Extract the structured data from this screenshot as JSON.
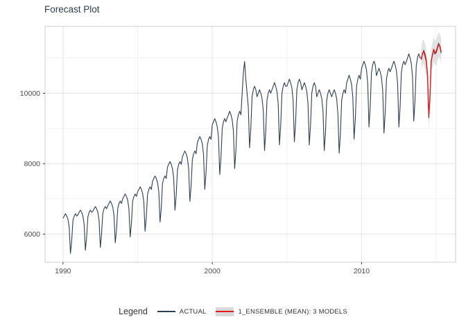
{
  "title": "Forecast Plot",
  "legend": {
    "label": "Legend",
    "entries": [
      {
        "name": "ACTUAL"
      },
      {
        "name": "1_ENSEMBLE (MEAN): 3 MODELS"
      }
    ]
  },
  "colors": {
    "actual": "#2c3e50",
    "forecast": "#e31a1c",
    "ribbon": "#d8d8d8",
    "grid_major": "#e3e3e3",
    "grid_minor": "#f1f1f1",
    "panel_border": "#c9ced3",
    "title_text": "#2c3e50",
    "axis_text": "#4a4a4a",
    "tick_mark": "#333333"
  },
  "axes": {
    "x_ticks": [
      "1990",
      "2000",
      "2010"
    ],
    "x_tick_values": [
      1990,
      2000,
      2010
    ],
    "x_minor": [
      1995,
      2005,
      2015
    ],
    "y_ticks": [
      "6000",
      "8000",
      "10000"
    ],
    "y_tick_values": [
      6000,
      8000,
      10000
    ],
    "y_minor": [
      7000,
      9000,
      11000
    ],
    "x_range": [
      1988.8,
      2016.3
    ],
    "y_range": [
      5200,
      11900
    ]
  },
  "chart_data": {
    "type": "line",
    "title": "Forecast Plot",
    "x_unit": "year (monthly samples, decimal years)",
    "xlabel": "",
    "ylabel": "",
    "legend_position": "bottom",
    "grid": true,
    "series": [
      {
        "name": "ACTUAL",
        "color": "#2c3e50",
        "start": 1990.0,
        "step": 0.0833333,
        "values": [
          6450,
          6510,
          6580,
          6510,
          6420,
          6190,
          5450,
          5810,
          6390,
          6510,
          6580,
          6510,
          6550,
          6620,
          6680,
          6620,
          6520,
          6290,
          5540,
          5900,
          6480,
          6620,
          6680,
          6620,
          6650,
          6720,
          6780,
          6720,
          6620,
          6380,
          5620,
          5990,
          6580,
          6720,
          6780,
          6720,
          6800,
          6870,
          6940,
          6870,
          6770,
          6530,
          5750,
          6120,
          6730,
          6870,
          6940,
          6870,
          7000,
          7070,
          7140,
          7070,
          6970,
          6720,
          5920,
          6300,
          6930,
          7070,
          7140,
          7070,
          7200,
          7270,
          7340,
          7270,
          7160,
          6910,
          6080,
          6480,
          7130,
          7270,
          7340,
          7270,
          7500,
          7580,
          7650,
          7580,
          7460,
          7200,
          6340,
          6750,
          7430,
          7580,
          7650,
          7580,
          7900,
          7980,
          8060,
          7980,
          7860,
          7580,
          6680,
          7110,
          7820,
          7980,
          8060,
          7980,
          8200,
          8280,
          8360,
          8280,
          8160,
          7870,
          6930,
          7380,
          8120,
          8280,
          8360,
          8280,
          8600,
          8690,
          8770,
          8690,
          8560,
          8260,
          7270,
          7740,
          8510,
          8690,
          8770,
          8690,
          9100,
          9190,
          9280,
          9190,
          9050,
          8740,
          7690,
          8190,
          9010,
          9190,
          9280,
          9190,
          9300,
          9390,
          9490,
          9390,
          9250,
          8930,
          7860,
          8370,
          9210,
          9390,
          9490,
          9390,
          10000,
          10600,
          10900,
          10400,
          10000,
          9600,
          8450,
          9000,
          9900,
          10100,
          10200,
          10100,
          9900,
          10000,
          10100,
          10000,
          9850,
          9500,
          8370,
          8910,
          9800,
          10000,
          10100,
          10000,
          10100,
          10200,
          10300,
          10200,
          10050,
          9700,
          8530,
          9090,
          10000,
          10200,
          10300,
          10200,
          10200,
          10300,
          10400,
          10300,
          10150,
          9790,
          8620,
          9180,
          10100,
          10300,
          10400,
          10300,
          10100,
          10200,
          10300,
          10200,
          10050,
          9700,
          8530,
          9090,
          10000,
          10200,
          10300,
          10200,
          9900,
          10000,
          10100,
          10000,
          9850,
          9500,
          8370,
          8910,
          9800,
          10000,
          10100,
          10000,
          9900,
          10000,
          10100,
          10000,
          9850,
          9400,
          8300,
          8850,
          9800,
          10000,
          10100,
          10000,
          10300,
          10400,
          10510,
          10400,
          10250,
          9890,
          8700,
          9270,
          10200,
          10400,
          10510,
          10400,
          10700,
          10810,
          10910,
          10810,
          10650,
          10270,
          9040,
          9630,
          10590,
          10810,
          10910,
          10810,
          10500,
          10610,
          10710,
          10610,
          10450,
          10080,
          8870,
          9450,
          10400,
          10610,
          10710,
          10610,
          10700,
          10810,
          10910,
          10810,
          10650,
          10270,
          9040,
          9630,
          10590,
          10810,
          10910,
          10810,
          10900,
          11010,
          11120,
          11010,
          10850,
          10460,
          9210,
          9810,
          10790,
          11010,
          11120,
          11010,
          11000,
          11110,
          11220,
          11110,
          10950,
          10560,
          9300,
          9900,
          10890,
          11110,
          11220,
          11110,
          11200,
          11310,
          11420,
          11310,
          11140
        ]
      },
      {
        "name": "1_ENSEMBLE (MEAN): 3 MODELS",
        "color": "#e31a1c",
        "start": 2014.0,
        "step": 0.0833333,
        "values": [
          10950,
          11150,
          11180,
          11050,
          10900,
          10500,
          9350,
          9850,
          10920,
          11080,
          11250,
          11150,
          11150,
          11280,
          11380,
          11340,
          11180
        ],
        "conf_lo": [
          10600,
          10800,
          10830,
          10700,
          10550,
          10150,
          9000,
          9500,
          10570,
          10730,
          10900,
          10800,
          10800,
          10930,
          11030,
          10990,
          10830
        ],
        "conf_hi": [
          11300,
          11500,
          11530,
          11400,
          11250,
          10850,
          9700,
          10200,
          11270,
          11430,
          11600,
          11500,
          11500,
          11630,
          11730,
          11690,
          11530
        ]
      }
    ]
  }
}
